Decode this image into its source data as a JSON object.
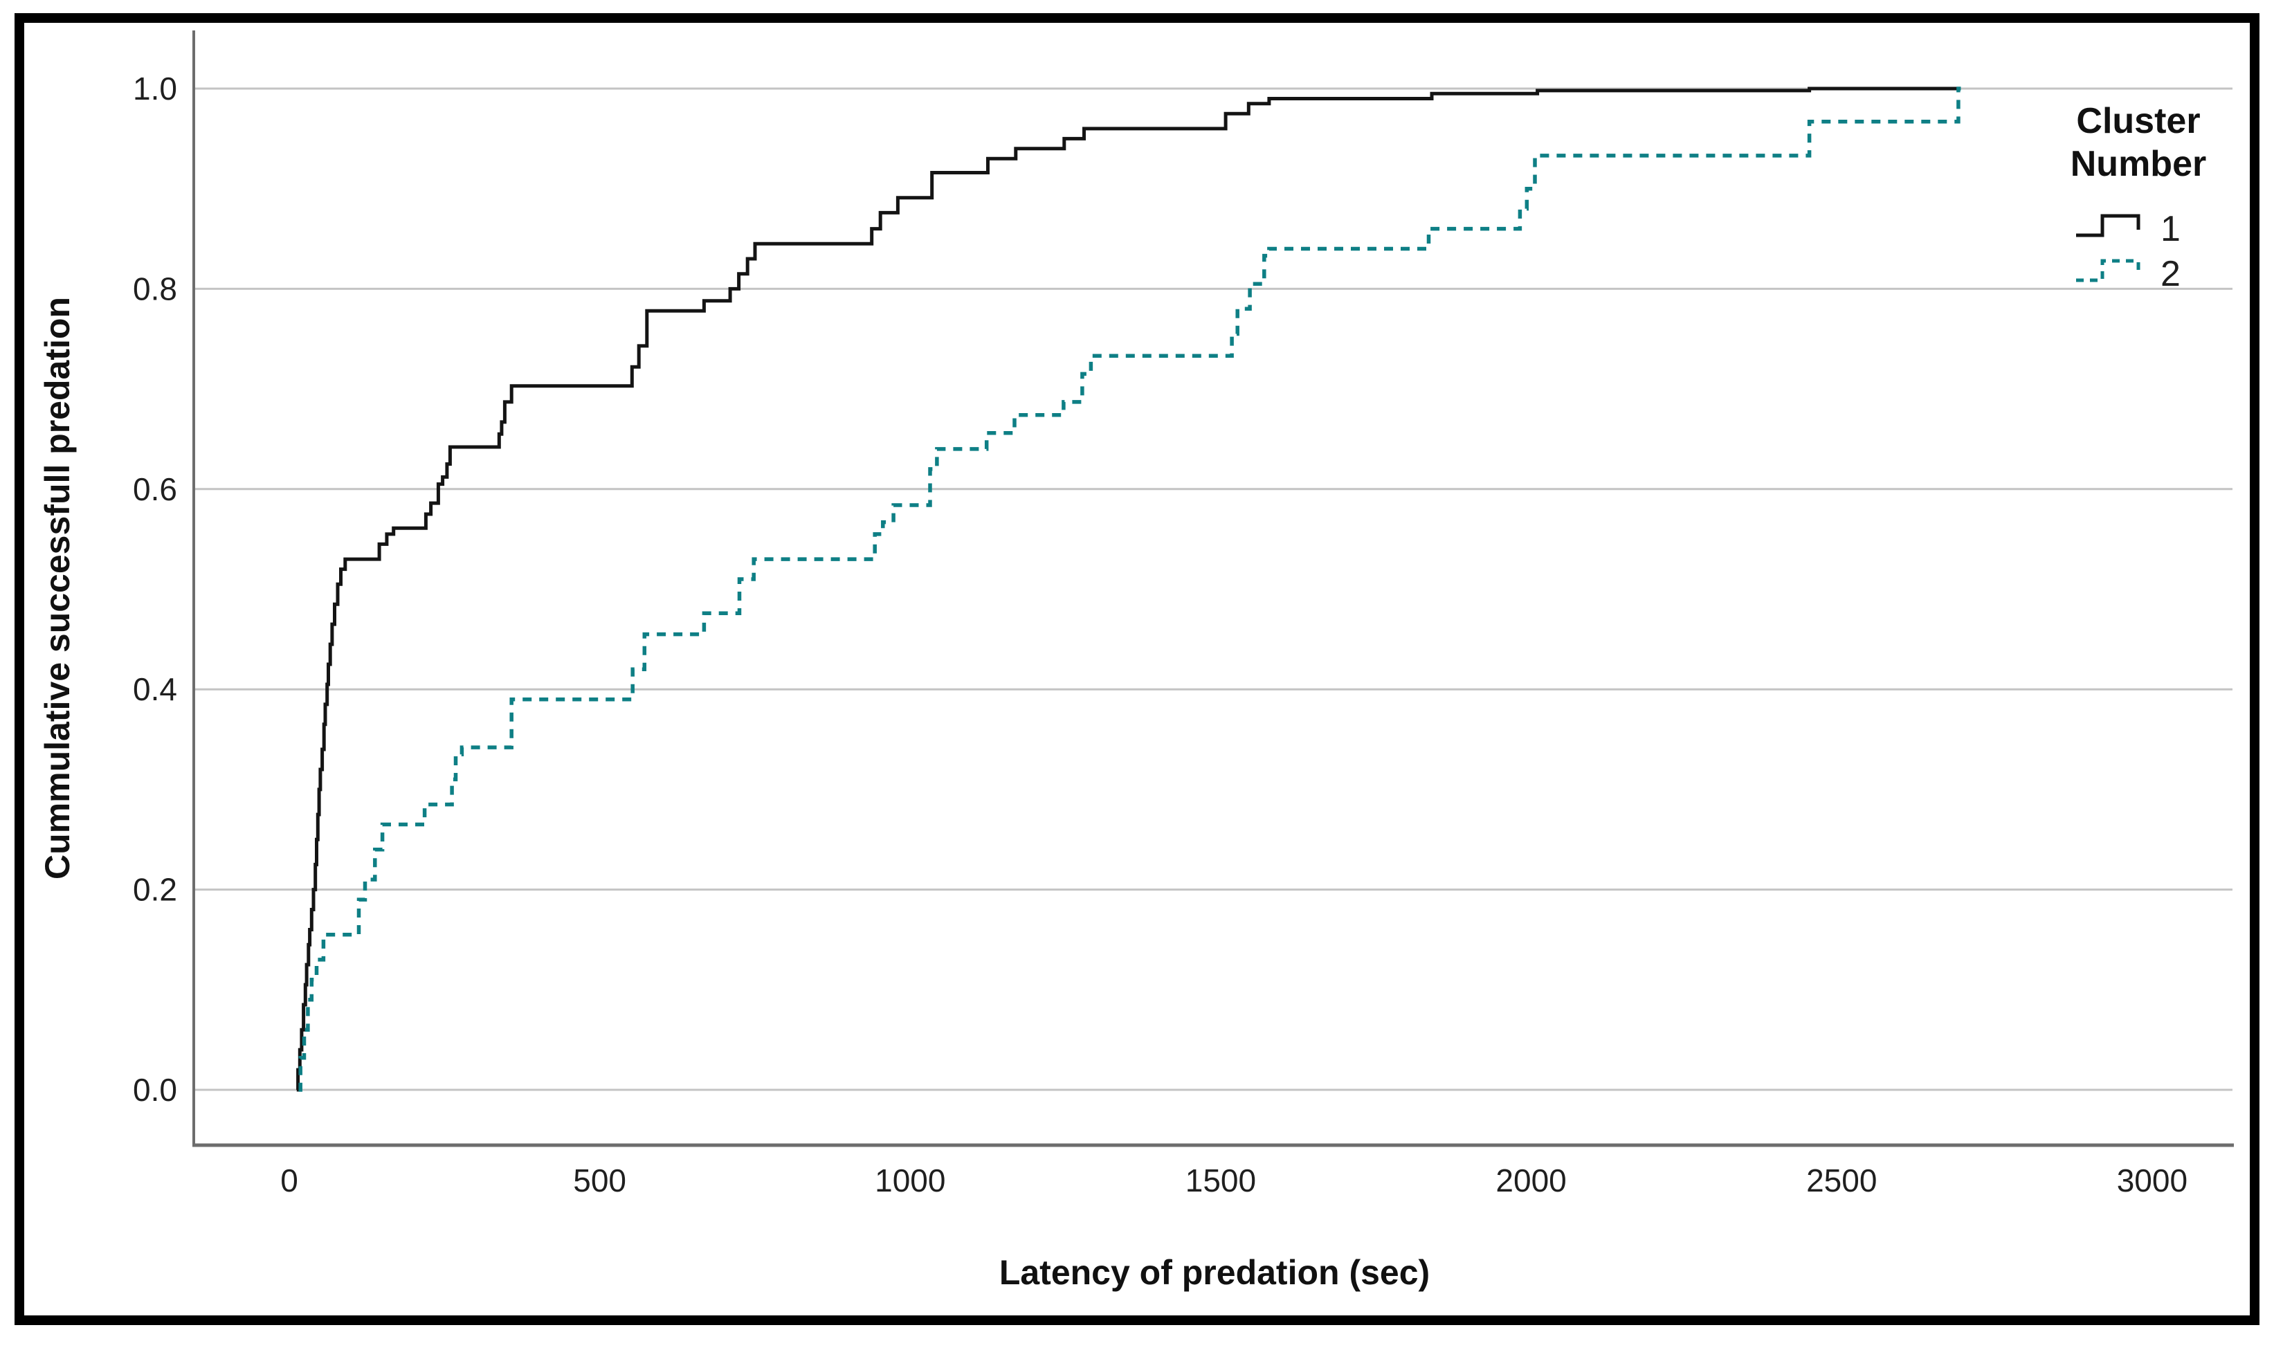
{
  "chart_data": {
    "type": "line",
    "subtype": "step-ecdf",
    "title": "",
    "xlabel": "Latency of predation (sec)",
    "ylabel": "Cummulative successfull predation",
    "grid": "horizontal",
    "xlim": [
      -154,
      3132
    ],
    "ylim": [
      -0.056,
      1.058
    ],
    "x_ticks": [
      {
        "t": 0,
        "label": "0"
      },
      {
        "t": 500,
        "label": "500"
      },
      {
        "t": 1000,
        "label": "1000"
      },
      {
        "t": 1500,
        "label": "1500"
      },
      {
        "t": 2000,
        "label": "2000"
      },
      {
        "t": 2500,
        "label": "2500"
      },
      {
        "t": 3000,
        "label": "3000"
      }
    ],
    "y_ticks": [
      {
        "v": 0.0,
        "label": "0.0"
      },
      {
        "v": 0.2,
        "label": "0.2"
      },
      {
        "v": 0.4,
        "label": "0.4"
      },
      {
        "v": 0.6,
        "label": "0.6"
      },
      {
        "v": 0.8,
        "label": "0.8"
      },
      {
        "v": 1.0,
        "label": "1.0"
      }
    ],
    "legend": {
      "title_line1": "Cluster",
      "title_line2": "Number",
      "position": "top-right",
      "entries": [
        {
          "label": "1",
          "style": "solid",
          "color": "#141414"
        },
        {
          "label": "2",
          "style": "dashed",
          "color": "#0e7f85"
        }
      ]
    },
    "series": [
      {
        "name": "1",
        "color": "#141414",
        "style": "solid",
        "points": [
          [
            12,
            0
          ],
          [
            14,
            0.02
          ],
          [
            17,
            0.04
          ],
          [
            20,
            0.06
          ],
          [
            23,
            0.085
          ],
          [
            26,
            0.105
          ],
          [
            28,
            0.125
          ],
          [
            31,
            0.145
          ],
          [
            33,
            0.16
          ],
          [
            36,
            0.18
          ],
          [
            39,
            0.2
          ],
          [
            42,
            0.225
          ],
          [
            44,
            0.25
          ],
          [
            46,
            0.275
          ],
          [
            48,
            0.3
          ],
          [
            50,
            0.32
          ],
          [
            53,
            0.34
          ],
          [
            56,
            0.365
          ],
          [
            58,
            0.385
          ],
          [
            61,
            0.405
          ],
          [
            63,
            0.425
          ],
          [
            66,
            0.445
          ],
          [
            69,
            0.465
          ],
          [
            73,
            0.485
          ],
          [
            78,
            0.505
          ],
          [
            83,
            0.52
          ],
          [
            90,
            0.53
          ],
          [
            145,
            0.545
          ],
          [
            157,
            0.555
          ],
          [
            168,
            0.561
          ],
          [
            220,
            0.575
          ],
          [
            228,
            0.586
          ],
          [
            240,
            0.605
          ],
          [
            247,
            0.612
          ],
          [
            254,
            0.625
          ],
          [
            259,
            0.642
          ],
          [
            338,
            0.655
          ],
          [
            342,
            0.667
          ],
          [
            347,
            0.687
          ],
          [
            358,
            0.703
          ],
          [
            552,
            0.722
          ],
          [
            563,
            0.743
          ],
          [
            576,
            0.778
          ],
          [
            668,
            0.788
          ],
          [
            710,
            0.8
          ],
          [
            724,
            0.815
          ],
          [
            738,
            0.83
          ],
          [
            750,
            0.845
          ],
          [
            938,
            0.86
          ],
          [
            952,
            0.876
          ],
          [
            980,
            0.891
          ],
          [
            1035,
            0.916
          ],
          [
            1125,
            0.93
          ],
          [
            1170,
            0.94
          ],
          [
            1248,
            0.95
          ],
          [
            1280,
            0.96
          ],
          [
            1508,
            0.975
          ],
          [
            1545,
            0.985
          ],
          [
            1578,
            0.99
          ],
          [
            1840,
            0.995
          ],
          [
            2010,
            0.998
          ],
          [
            2448,
            1.0
          ],
          [
            2690,
            1.0
          ]
        ]
      },
      {
        "name": "2",
        "color": "#0e7f85",
        "style": "dashed",
        "points": [
          [
            15,
            0
          ],
          [
            18,
            0.032
          ],
          [
            24,
            0.06
          ],
          [
            30,
            0.09
          ],
          [
            36,
            0.11
          ],
          [
            44,
            0.13
          ],
          [
            55,
            0.155
          ],
          [
            112,
            0.19
          ],
          [
            122,
            0.21
          ],
          [
            138,
            0.24
          ],
          [
            150,
            0.265
          ],
          [
            218,
            0.285
          ],
          [
            262,
            0.31
          ],
          [
            268,
            0.335
          ],
          [
            278,
            0.342
          ],
          [
            358,
            0.39
          ],
          [
            553,
            0.42
          ],
          [
            572,
            0.455
          ],
          [
            668,
            0.476
          ],
          [
            725,
            0.51
          ],
          [
            748,
            0.53
          ],
          [
            943,
            0.555
          ],
          [
            956,
            0.567
          ],
          [
            973,
            0.584
          ],
          [
            1032,
            0.62
          ],
          [
            1043,
            0.64
          ],
          [
            1123,
            0.656
          ],
          [
            1168,
            0.674
          ],
          [
            1247,
            0.687
          ],
          [
            1277,
            0.715
          ],
          [
            1291,
            0.733
          ],
          [
            1518,
            0.755
          ],
          [
            1527,
            0.78
          ],
          [
            1547,
            0.805
          ],
          [
            1570,
            0.833
          ],
          [
            1578,
            0.84
          ],
          [
            1835,
            0.86
          ],
          [
            1982,
            0.88
          ],
          [
            1993,
            0.9
          ],
          [
            2006,
            0.933
          ],
          [
            2448,
            0.967
          ],
          [
            2686,
            0.967
          ],
          [
            2688,
            1.0
          ],
          [
            2692,
            1.0
          ]
        ]
      }
    ]
  }
}
